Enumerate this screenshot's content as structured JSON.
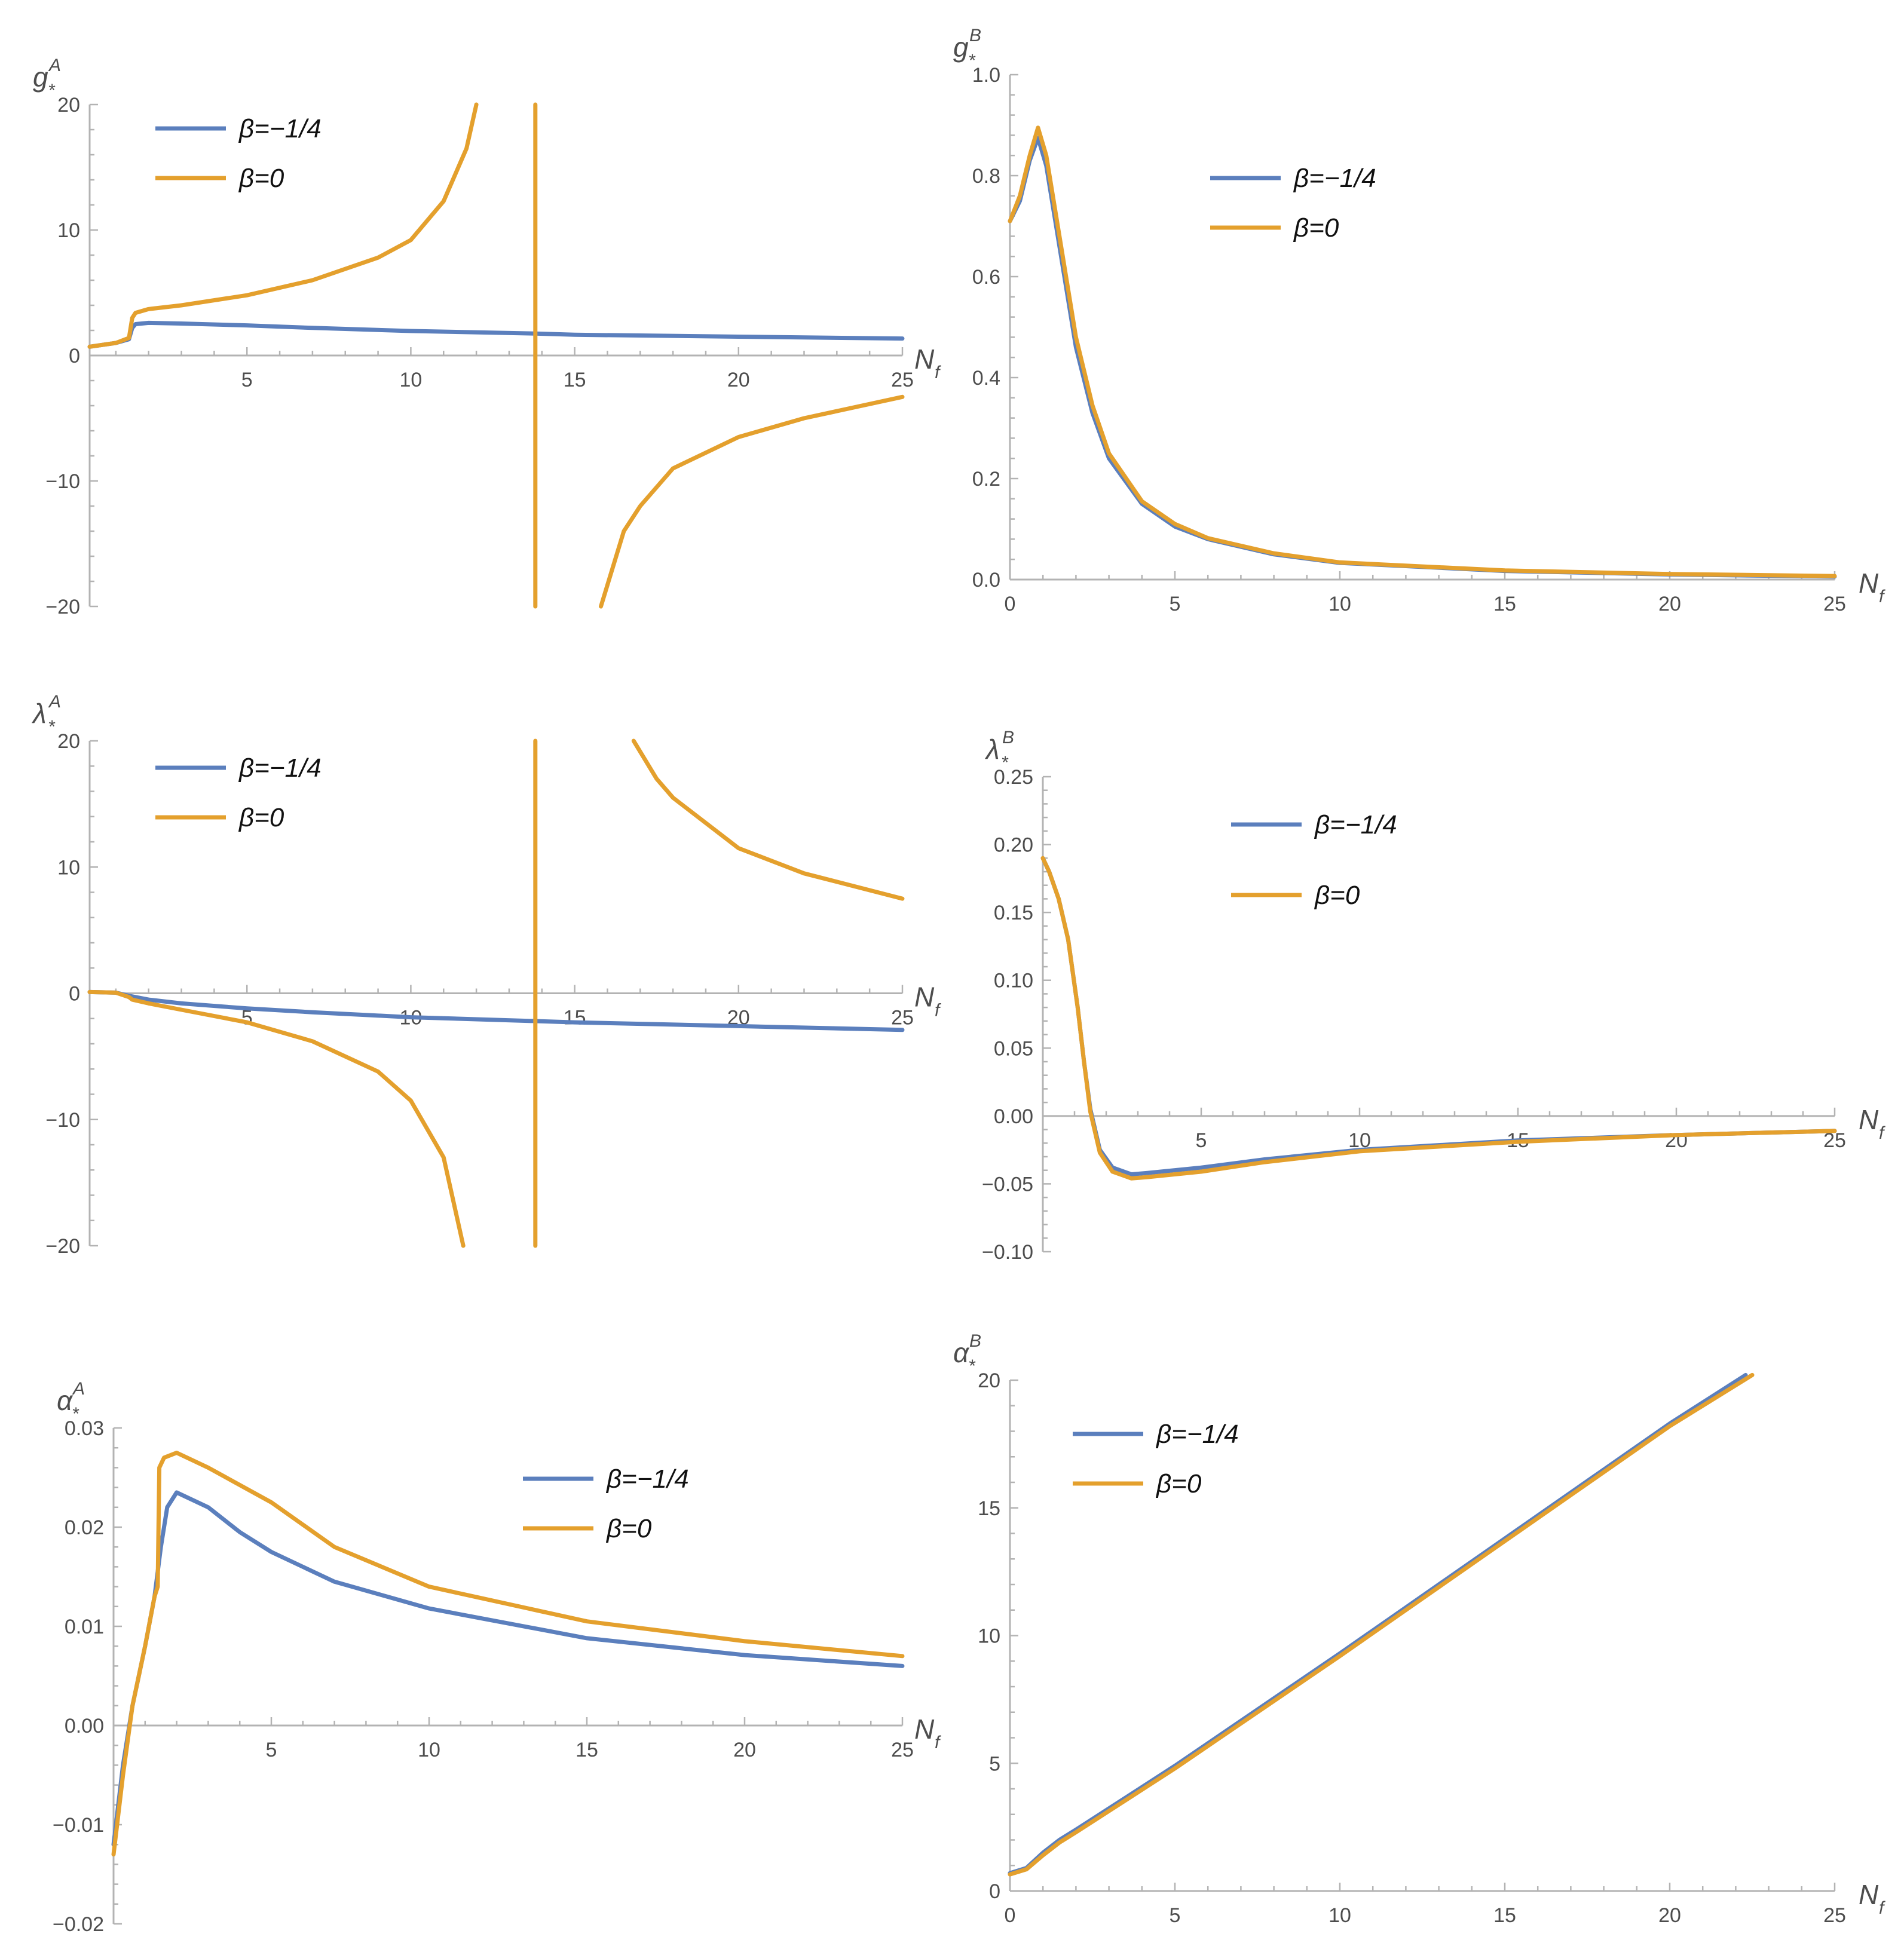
{
  "colors": {
    "beta_neg_quarter": "#5b7fbd",
    "beta_zero": "#e4a02d"
  },
  "chart_data": [
    {
      "id": "gA",
      "type": "line",
      "ylabel_main": "g",
      "ylabel_sub": "*",
      "ylabel_sup": "A",
      "xlabel_main": "N",
      "xlabel_sub": "f",
      "xlim": [
        0.2,
        25
      ],
      "ylim": [
        -20,
        20
      ],
      "xticks": [
        5,
        10,
        15,
        20,
        25
      ],
      "yticks": [
        -20,
        -10,
        0,
        10,
        20
      ],
      "ytick_labels": [
        "−20",
        "−10",
        "0",
        "10",
        "20"
      ],
      "xaxis_at": 0,
      "legend": [
        "β=−1/4",
        "β=0"
      ],
      "legend_loc": "top-left",
      "series": [
        {
          "name": "β=−1/4",
          "color": "#5b7fbd",
          "points": [
            [
              0.2,
              0.7
            ],
            [
              1,
              1.0
            ],
            [
              1.4,
              1.3
            ],
            [
              1.5,
              2.2
            ],
            [
              1.6,
              2.5
            ],
            [
              2,
              2.6
            ],
            [
              3,
              2.55
            ],
            [
              5,
              2.4
            ],
            [
              7,
              2.2
            ],
            [
              10,
              1.95
            ],
            [
              13.8,
              1.75
            ],
            [
              15,
              1.65
            ],
            [
              20,
              1.5
            ],
            [
              25,
              1.35
            ]
          ]
        },
        {
          "name": "β=0",
          "color": "#e4a02d",
          "points": [
            [
              0.2,
              0.7
            ],
            [
              1,
              1.0
            ],
            [
              1.4,
              1.4
            ],
            [
              1.5,
              3.0
            ],
            [
              1.6,
              3.4
            ],
            [
              2,
              3.7
            ],
            [
              3,
              4.0
            ],
            [
              5,
              4.8
            ],
            [
              7,
              6.0
            ],
            [
              9,
              7.8
            ],
            [
              10,
              9.2
            ],
            [
              11,
              12.3
            ],
            [
              11.7,
              16.5
            ],
            [
              12,
              20
            ]
          ]
        },
        {
          "name": "β=0",
          "color": "#e4a02d",
          "points": [
            [
              15.8,
              -20
            ],
            [
              16.5,
              -14
            ],
            [
              17,
              -12
            ],
            [
              18,
              -9
            ],
            [
              20,
              -6.5
            ],
            [
              22,
              -5
            ],
            [
              25,
              -3.3
            ]
          ]
        },
        {
          "name": "β=0",
          "color": "#e4a02d",
          "points": [
            [
              13.8,
              20
            ],
            [
              13.8,
              -20
            ]
          ]
        }
      ]
    },
    {
      "id": "gB",
      "type": "line",
      "ylabel_main": "g",
      "ylabel_sub": "*",
      "ylabel_sup": "B",
      "xlabel_main": "N",
      "xlabel_sub": "f",
      "xlim": [
        0,
        25
      ],
      "ylim": [
        0,
        1.0
      ],
      "xticks": [
        0,
        5,
        10,
        15,
        20,
        25
      ],
      "yticks": [
        0,
        0.2,
        0.4,
        0.6,
        0.8,
        1.0
      ],
      "ytick_labels": [
        "0.0",
        "0.2",
        "0.4",
        "0.6",
        "0.8",
        "1.0"
      ],
      "xaxis_at": 0,
      "legend": [
        "β=−1/4",
        "β=0"
      ],
      "legend_loc": "top-center",
      "series": [
        {
          "name": "β=−1/4",
          "color": "#5b7fbd",
          "points": [
            [
              0,
              0.71
            ],
            [
              0.3,
              0.75
            ],
            [
              0.6,
              0.83
            ],
            [
              0.85,
              0.875
            ],
            [
              1.1,
              0.82
            ],
            [
              1.5,
              0.66
            ],
            [
              2,
              0.46
            ],
            [
              2.5,
              0.33
            ],
            [
              3,
              0.24
            ],
            [
              4,
              0.15
            ],
            [
              5,
              0.105
            ],
            [
              6,
              0.08
            ],
            [
              8,
              0.05
            ],
            [
              10,
              0.033
            ],
            [
              15,
              0.017
            ],
            [
              20,
              0.01
            ],
            [
              25,
              0.006
            ]
          ]
        },
        {
          "name": "β=0",
          "color": "#e4a02d",
          "points": [
            [
              0,
              0.71
            ],
            [
              0.3,
              0.76
            ],
            [
              0.6,
              0.84
            ],
            [
              0.85,
              0.895
            ],
            [
              1.1,
              0.84
            ],
            [
              1.5,
              0.68
            ],
            [
              2,
              0.48
            ],
            [
              2.5,
              0.345
            ],
            [
              3,
              0.25
            ],
            [
              4,
              0.155
            ],
            [
              5,
              0.11
            ],
            [
              6,
              0.082
            ],
            [
              8,
              0.052
            ],
            [
              10,
              0.034
            ],
            [
              15,
              0.018
            ],
            [
              20,
              0.011
            ],
            [
              25,
              0.007
            ]
          ]
        }
      ]
    },
    {
      "id": "lambdaA",
      "type": "line",
      "ylabel_main": "λ",
      "ylabel_sub": "*",
      "ylabel_sup": "A",
      "xlabel_main": "N",
      "xlabel_sub": "f",
      "xlim": [
        0.2,
        25
      ],
      "ylim": [
        -20,
        20
      ],
      "xticks": [
        5,
        10,
        15,
        20,
        25
      ],
      "yticks": [
        -20,
        -10,
        0,
        10,
        20
      ],
      "ytick_labels": [
        "−20",
        "−10",
        "0",
        "10",
        "20"
      ],
      "xaxis_at": 0,
      "legend": [
        "β=−1/4",
        "β=0"
      ],
      "legend_loc": "top-left",
      "series": [
        {
          "name": "β=−1/4",
          "color": "#5b7fbd",
          "points": [
            [
              0.2,
              0.1
            ],
            [
              1,
              0.05
            ],
            [
              1.4,
              -0.2
            ],
            [
              2,
              -0.5
            ],
            [
              3,
              -0.8
            ],
            [
              5,
              -1.2
            ],
            [
              7,
              -1.5
            ],
            [
              10,
              -1.9
            ],
            [
              13.8,
              -2.2
            ],
            [
              15,
              -2.3
            ],
            [
              20,
              -2.6
            ],
            [
              25,
              -2.9
            ]
          ]
        },
        {
          "name": "β=0",
          "color": "#e4a02d",
          "points": [
            [
              0.2,
              0.1
            ],
            [
              1,
              0.05
            ],
            [
              1.4,
              -0.3
            ],
            [
              1.5,
              -0.5
            ],
            [
              2,
              -0.8
            ],
            [
              3,
              -1.3
            ],
            [
              5,
              -2.3
            ],
            [
              7,
              -3.8
            ],
            [
              9,
              -6.2
            ],
            [
              10,
              -8.5
            ],
            [
              11,
              -13
            ],
            [
              11.6,
              -20
            ]
          ]
        },
        {
          "name": "β=0",
          "color": "#e4a02d",
          "points": [
            [
              16.8,
              20
            ],
            [
              17.5,
              17
            ],
            [
              18,
              15.5
            ],
            [
              20,
              11.5
            ],
            [
              22,
              9.5
            ],
            [
              25,
              7.5
            ]
          ]
        },
        {
          "name": "β=0",
          "color": "#e4a02d",
          "points": [
            [
              13.8,
              20
            ],
            [
              13.8,
              -20
            ]
          ]
        }
      ]
    },
    {
      "id": "lambdaB",
      "type": "line",
      "ylabel_main": "λ",
      "ylabel_sub": "*",
      "ylabel_sup": "B",
      "xlabel_main": "N",
      "xlabel_sub": "f",
      "xlim": [
        0,
        25
      ],
      "ylim": [
        -0.1,
        0.25
      ],
      "xticks": [
        5,
        10,
        15,
        20,
        25
      ],
      "yticks": [
        -0.1,
        -0.05,
        0,
        0.05,
        0.1,
        0.15,
        0.2,
        0.25
      ],
      "ytick_labels": [
        "−0.10",
        "−0.05",
        "0.00",
        "0.05",
        "0.10",
        "0.15",
        "0.20",
        "0.25"
      ],
      "xaxis_at": 0,
      "legend": [
        "β=−1/4",
        "β=0"
      ],
      "legend_loc": "top-center",
      "series": [
        {
          "name": "β=−1/4",
          "color": "#5b7fbd",
          "points": [
            [
              0,
              0.19
            ],
            [
              0.2,
              0.18
            ],
            [
              0.5,
              0.16
            ],
            [
              0.8,
              0.13
            ],
            [
              1.1,
              0.08
            ],
            [
              1.3,
              0.04
            ],
            [
              1.5,
              0.005
            ],
            [
              1.8,
              -0.025
            ],
            [
              2.2,
              -0.038
            ],
            [
              2.8,
              -0.043
            ],
            [
              3.3,
              -0.042
            ],
            [
              5,
              -0.038
            ],
            [
              7,
              -0.032
            ],
            [
              10,
              -0.025
            ],
            [
              15,
              -0.018
            ],
            [
              20,
              -0.014
            ],
            [
              25,
              -0.011
            ]
          ]
        },
        {
          "name": "β=0",
          "color": "#e4a02d",
          "points": [
            [
              0,
              0.19
            ],
            [
              0.2,
              0.18
            ],
            [
              0.5,
              0.16
            ],
            [
              0.8,
              0.13
            ],
            [
              1.1,
              0.08
            ],
            [
              1.3,
              0.04
            ],
            [
              1.5,
              0.003
            ],
            [
              1.8,
              -0.027
            ],
            [
              2.2,
              -0.041
            ],
            [
              2.8,
              -0.046
            ],
            [
              3.3,
              -0.045
            ],
            [
              5,
              -0.041
            ],
            [
              7,
              -0.034
            ],
            [
              10,
              -0.026
            ],
            [
              15,
              -0.019
            ],
            [
              20,
              -0.014
            ],
            [
              25,
              -0.011
            ]
          ]
        }
      ]
    },
    {
      "id": "alphaA",
      "type": "line",
      "ylabel_main": "α",
      "ylabel_sub": "*",
      "ylabel_sup": "A",
      "xlabel_main": "N",
      "xlabel_sub": "f",
      "xlim": [
        0,
        25
      ],
      "ylim": [
        -0.02,
        0.03
      ],
      "xticks": [
        5,
        10,
        15,
        20,
        25
      ],
      "yticks": [
        -0.02,
        -0.01,
        0,
        0.01,
        0.02,
        0.03
      ],
      "ytick_labels": [
        "−0.02",
        "−0.01",
        "0.00",
        "0.01",
        "0.02",
        "0.03"
      ],
      "xaxis_at": 0,
      "legend": [
        "β=−1/4",
        "β=0"
      ],
      "legend_loc": "center",
      "series": [
        {
          "name": "β=−1/4",
          "color": "#5b7fbd",
          "points": [
            [
              0,
              -0.012
            ],
            [
              0.3,
              -0.004
            ],
            [
              0.6,
              0.002
            ],
            [
              1,
              0.008
            ],
            [
              1.3,
              0.013
            ],
            [
              1.5,
              0.018
            ],
            [
              1.7,
              0.022
            ],
            [
              2,
              0.0235
            ],
            [
              3,
              0.022
            ],
            [
              4,
              0.0195
            ],
            [
              5,
              0.0175
            ],
            [
              7,
              0.0145
            ],
            [
              10,
              0.0118
            ],
            [
              15,
              0.0088
            ],
            [
              20,
              0.0071
            ],
            [
              25,
              0.006
            ]
          ]
        },
        {
          "name": "β=0",
          "color": "#e4a02d",
          "points": [
            [
              0,
              -0.013
            ],
            [
              0.3,
              -0.005
            ],
            [
              0.6,
              0.002
            ],
            [
              1,
              0.008
            ],
            [
              1.3,
              0.013
            ],
            [
              1.4,
              0.014
            ],
            [
              1.45,
              0.026
            ],
            [
              1.6,
              0.027
            ],
            [
              2,
              0.0275
            ],
            [
              3,
              0.026
            ],
            [
              5,
              0.0225
            ],
            [
              7,
              0.018
            ],
            [
              10,
              0.014
            ],
            [
              15,
              0.0105
            ],
            [
              20,
              0.0085
            ],
            [
              25,
              0.007
            ]
          ]
        }
      ]
    },
    {
      "id": "alphaB",
      "type": "line",
      "ylabel_main": "α",
      "ylabel_sub": "*",
      "ylabel_sup": "B",
      "xlabel_main": "N",
      "xlabel_sub": "f",
      "xlim": [
        0,
        25
      ],
      "ylim": [
        0,
        20
      ],
      "xticks": [
        0,
        5,
        10,
        15,
        20,
        25
      ],
      "yticks": [
        0,
        5,
        10,
        15,
        20
      ],
      "ytick_labels": [
        "0",
        "5",
        "10",
        "15",
        "20"
      ],
      "xaxis_at": 0,
      "legend": [
        "β=−1/4",
        "β=0"
      ],
      "legend_loc": "top-left",
      "series": [
        {
          "name": "β=−1/4",
          "color": "#5b7fbd",
          "points": [
            [
              0,
              0.7
            ],
            [
              0.5,
              0.9
            ],
            [
              1,
              1.5
            ],
            [
              1.5,
              2.0
            ],
            [
              2,
              2.4
            ],
            [
              5,
              4.9
            ],
            [
              10,
              9.3
            ],
            [
              15,
              13.8
            ],
            [
              20,
              18.3
            ],
            [
              22.3,
              20.2
            ]
          ]
        },
        {
          "name": "β=0",
          "color": "#e4a02d",
          "points": [
            [
              0,
              0.65
            ],
            [
              0.5,
              0.85
            ],
            [
              1,
              1.4
            ],
            [
              1.5,
              1.9
            ],
            [
              2,
              2.3
            ],
            [
              5,
              4.8
            ],
            [
              10,
              9.2
            ],
            [
              15,
              13.7
            ],
            [
              20,
              18.2
            ],
            [
              22.5,
              20.2
            ]
          ]
        }
      ]
    }
  ]
}
